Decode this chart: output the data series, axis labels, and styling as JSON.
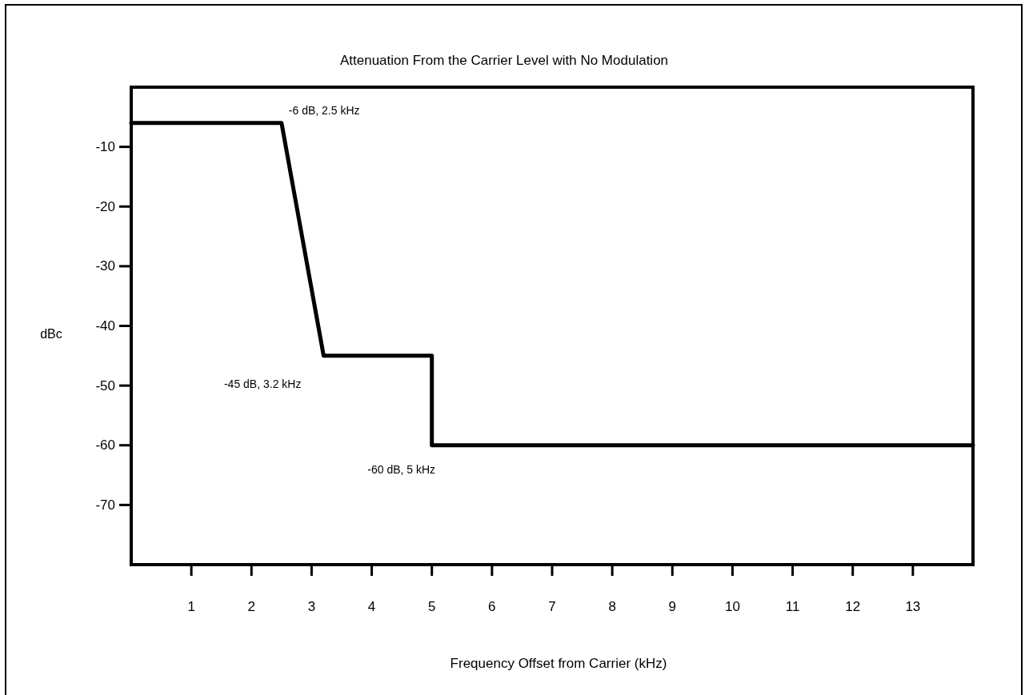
{
  "chart_data": {
    "type": "line",
    "title": "Attenuation From the Carrier Level with No Modulation",
    "xlabel": "Frequency Offset from Carrier (kHz)",
    "ylabel": "dBc",
    "x": [
      0,
      2.5,
      3.2,
      5,
      5,
      14
    ],
    "values": [
      -6,
      -6,
      -45,
      -45,
      -60,
      -60
    ],
    "color": "#000000",
    "line_style": "solid",
    "xlim": [
      0,
      14
    ],
    "ylim": [
      -80,
      0
    ],
    "xticks": [
      1,
      2,
      3,
      4,
      5,
      6,
      7,
      8,
      9,
      10,
      11,
      12,
      13
    ],
    "yticks": [
      -10,
      -20,
      -30,
      -40,
      -50,
      -60,
      -70
    ],
    "annotations": [
      {
        "text": "-6 dB, 2.5 kHz",
        "x": 2.5,
        "y": -6
      },
      {
        "text": "-45 dB, 3.2 kHz",
        "x": 3.2,
        "y": -45
      },
      {
        "text": "-60 dB, 5 kHz",
        "x": 5,
        "y": -60
      }
    ]
  }
}
